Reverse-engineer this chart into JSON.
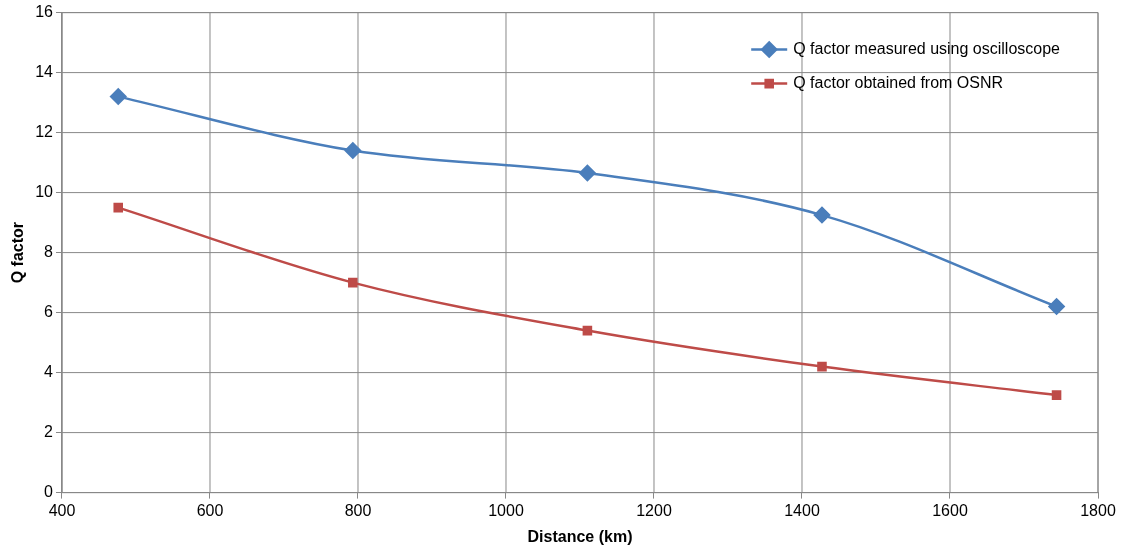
{
  "chart_data": {
    "type": "line",
    "xlabel": "Distance (km)",
    "ylabel": "Q factor",
    "x": [
      476,
      793,
      1110,
      1427,
      1744
    ],
    "series": [
      {
        "name": "Q factor measured using oscilloscope",
        "color": "#4a7ebb",
        "marker": "diamond",
        "values": [
          13.2,
          11.4,
          10.65,
          9.25,
          6.2
        ]
      },
      {
        "name": "Q factor obtained from OSNR",
        "color": "#be4b48",
        "marker": "square",
        "values": [
          9.5,
          7.0,
          5.4,
          4.2,
          3.25
        ]
      }
    ],
    "xlim": [
      400,
      1800
    ],
    "xticks": [
      400,
      600,
      800,
      1000,
      1200,
      1400,
      1600,
      1800
    ],
    "ylim": [
      0,
      16
    ],
    "yticks": [
      0,
      2,
      4,
      6,
      8,
      10,
      12,
      14,
      16
    ],
    "grid": true,
    "legend": "top right",
    "line_style": "solid"
  }
}
